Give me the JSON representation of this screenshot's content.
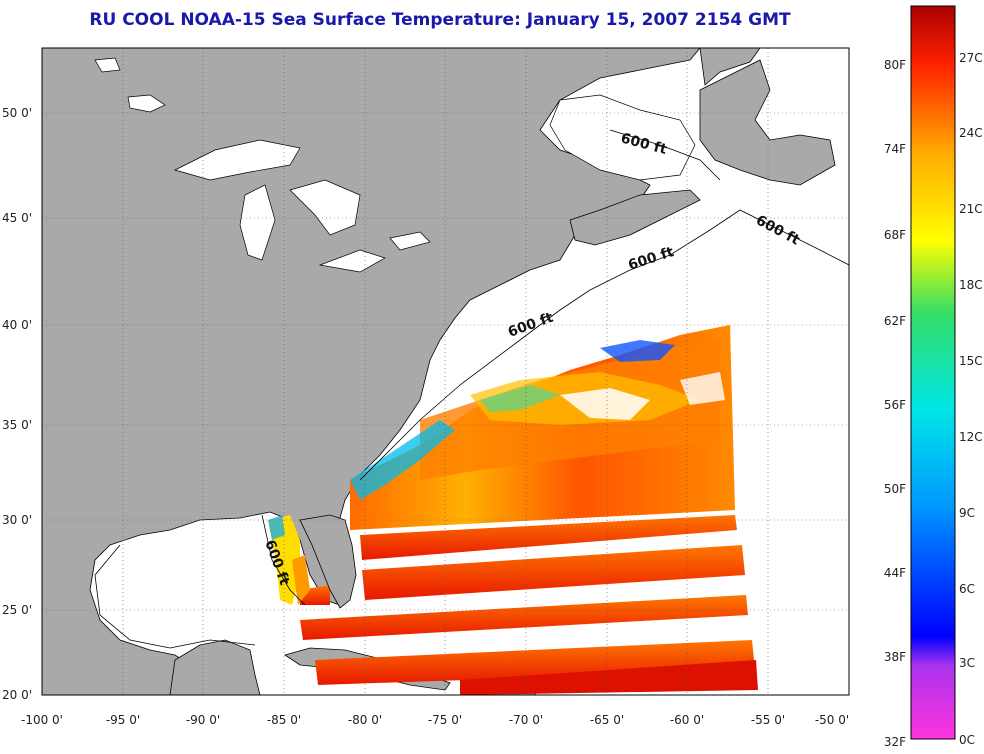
{
  "title": "RU COOL  NOAA-15  Sea Surface Temperature:  January 15, 2007 2154 GMT",
  "map": {
    "lat_ticks": [
      "50 0'",
      "45 0'",
      "40 0'",
      "35 0'",
      "30 0'",
      "25 0'",
      "20 0'"
    ],
    "lon_ticks": [
      "-100 0'",
      "-95 0'",
      "-90 0'",
      "-85 0'",
      "-80 0'",
      "-75 0'",
      "-70 0'",
      "-65 0'",
      "-60 0'",
      "-55 0'",
      "-50 0'"
    ],
    "contour_labels": [
      "600 ft",
      "600 ft",
      "600 ft",
      "600 ft",
      "600 ft"
    ],
    "colors": {
      "land": "#a9a9a9",
      "sea_nodata": "#ffffff",
      "outline": "#000000"
    }
  },
  "colorbar": {
    "fahrenheit": [
      "80F",
      "74F",
      "68F",
      "62F",
      "56F",
      "50F",
      "44F",
      "38F",
      "32F"
    ],
    "celsius": [
      "27C",
      "24C",
      "21C",
      "18C",
      "15C",
      "12C",
      "9C",
      "6C",
      "3C",
      "0C"
    ],
    "colors": [
      "#ff33dd",
      "#aa33ee",
      "#0000ff",
      "#0099ff",
      "#00e6e6",
      "#33dd66",
      "#ffff00",
      "#ffaa00",
      "#ff2200",
      "#aa0000"
    ]
  }
}
